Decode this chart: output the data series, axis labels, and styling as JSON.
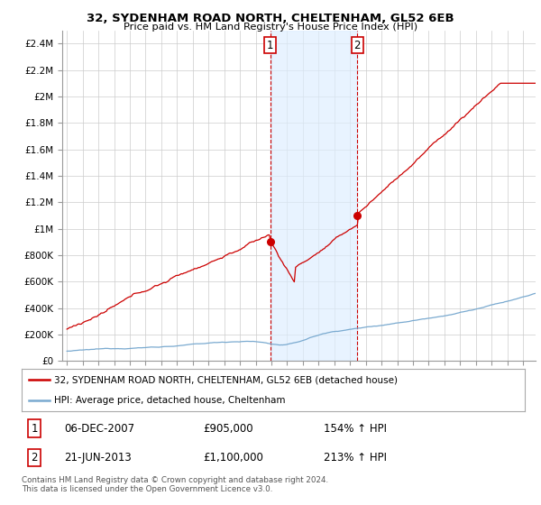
{
  "title": "32, SYDENHAM ROAD NORTH, CHELTENHAM, GL52 6EB",
  "subtitle": "Price paid vs. HM Land Registry's House Price Index (HPI)",
  "property_label": "32, SYDENHAM ROAD NORTH, CHELTENHAM, GL52 6EB (detached house)",
  "hpi_label": "HPI: Average price, detached house, Cheltenham",
  "footer": "Contains HM Land Registry data © Crown copyright and database right 2024.\nThis data is licensed under the Open Government Licence v3.0.",
  "sale1_label": "06-DEC-2007",
  "sale1_price": "£905,000",
  "sale1_hpi": "154% ↑ HPI",
  "sale2_label": "21-JUN-2013",
  "sale2_price": "£1,100,000",
  "sale2_hpi": "213% ↑ HPI",
  "property_color": "#cc0000",
  "hpi_color": "#7aaad0",
  "vline_color": "#cc0000",
  "vshade_color": "#ddeeff",
  "background_color": "#ffffff",
  "ylim": [
    0,
    2500000
  ],
  "yticks": [
    0,
    200000,
    400000,
    600000,
    800000,
    1000000,
    1200000,
    1400000,
    1600000,
    1800000,
    2000000,
    2200000,
    2400000
  ],
  "ytick_labels": [
    "£0",
    "£200K",
    "£400K",
    "£600K",
    "£800K",
    "£1M",
    "£1.2M",
    "£1.4M",
    "£1.6M",
    "£1.8M",
    "£2M",
    "£2.2M",
    "£2.4M"
  ],
  "sale1_x": 2007.92,
  "sale1_y": 905000,
  "sale2_x": 2013.46,
  "sale2_y": 1100000,
  "xlim_left": 1994.7,
  "xlim_right": 2024.8
}
